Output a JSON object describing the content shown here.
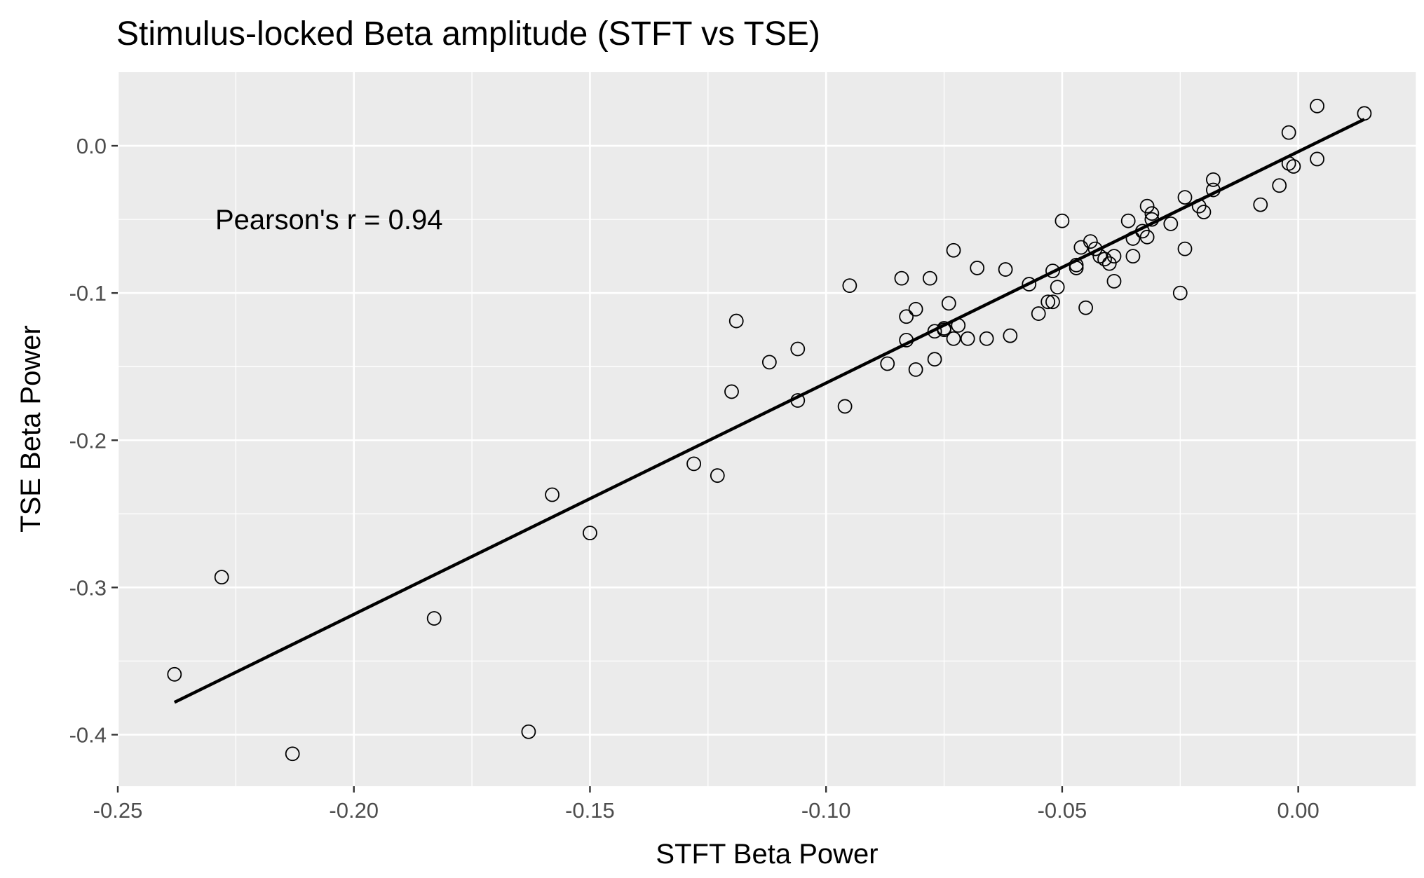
{
  "chart_data": {
    "type": "scatter",
    "title": "Stimulus-locked Beta amplitude (STFT vs TSE)",
    "xlabel": "STFT Beta Power",
    "ylabel": "TSE Beta Power",
    "xlim": [
      -0.25,
      0.025
    ],
    "ylim": [
      -0.435,
      0.05
    ],
    "x_ticks": [
      -0.25,
      -0.2,
      -0.15,
      -0.1,
      -0.05,
      0.0
    ],
    "x_tick_labels": [
      "-0.25",
      "-0.20",
      "-0.15",
      "-0.10",
      "-0.05",
      "0.00"
    ],
    "y_ticks": [
      0.0,
      -0.1,
      -0.2,
      -0.3,
      -0.4
    ],
    "y_tick_labels": [
      "0.0",
      "-0.1",
      "-0.2",
      "-0.3",
      "-0.4"
    ],
    "grid": true,
    "annotation": "Pearson's r =  0.94",
    "colors": {
      "panel_background": "#ebebeb",
      "grid_major": "#ffffff",
      "points": "#000000",
      "fit_line": "#000000",
      "tick_labels": "#4d4d4d"
    },
    "fit_line": {
      "x": [
        -0.238,
        0.014
      ],
      "y": [
        -0.378,
        0.018
      ]
    },
    "points": [
      {
        "x": -0.238,
        "y": -0.359
      },
      {
        "x": -0.228,
        "y": -0.293
      },
      {
        "x": -0.213,
        "y": -0.413
      },
      {
        "x": -0.183,
        "y": -0.321
      },
      {
        "x": -0.163,
        "y": -0.398
      },
      {
        "x": -0.158,
        "y": -0.237
      },
      {
        "x": -0.15,
        "y": -0.263
      },
      {
        "x": -0.128,
        "y": -0.216
      },
      {
        "x": -0.123,
        "y": -0.224
      },
      {
        "x": -0.119,
        "y": -0.119
      },
      {
        "x": -0.12,
        "y": -0.167
      },
      {
        "x": -0.112,
        "y": -0.147
      },
      {
        "x": -0.106,
        "y": -0.138
      },
      {
        "x": -0.106,
        "y": -0.173
      },
      {
        "x": -0.096,
        "y": -0.177
      },
      {
        "x": -0.095,
        "y": -0.095
      },
      {
        "x": -0.087,
        "y": -0.148
      },
      {
        "x": -0.084,
        "y": -0.09
      },
      {
        "x": -0.083,
        "y": -0.116
      },
      {
        "x": -0.083,
        "y": -0.132
      },
      {
        "x": -0.081,
        "y": -0.111
      },
      {
        "x": -0.081,
        "y": -0.152
      },
      {
        "x": -0.078,
        "y": -0.09
      },
      {
        "x": -0.077,
        "y": -0.126
      },
      {
        "x": -0.077,
        "y": -0.145
      },
      {
        "x": -0.075,
        "y": -0.124
      },
      {
        "x": -0.075,
        "y": -0.125
      },
      {
        "x": -0.074,
        "y": -0.107
      },
      {
        "x": -0.073,
        "y": -0.071
      },
      {
        "x": -0.072,
        "y": -0.122
      },
      {
        "x": -0.073,
        "y": -0.131
      },
      {
        "x": -0.07,
        "y": -0.131
      },
      {
        "x": -0.068,
        "y": -0.083
      },
      {
        "x": -0.066,
        "y": -0.131
      },
      {
        "x": -0.062,
        "y": -0.084
      },
      {
        "x": -0.061,
        "y": -0.129
      },
      {
        "x": -0.057,
        "y": -0.094
      },
      {
        "x": -0.055,
        "y": -0.114
      },
      {
        "x": -0.053,
        "y": -0.106
      },
      {
        "x": -0.052,
        "y": -0.085
      },
      {
        "x": -0.052,
        "y": -0.106
      },
      {
        "x": -0.051,
        "y": -0.096
      },
      {
        "x": -0.05,
        "y": -0.051
      },
      {
        "x": -0.047,
        "y": -0.083
      },
      {
        "x": -0.047,
        "y": -0.081
      },
      {
        "x": -0.046,
        "y": -0.069
      },
      {
        "x": -0.045,
        "y": -0.11
      },
      {
        "x": -0.044,
        "y": -0.065
      },
      {
        "x": -0.043,
        "y": -0.07
      },
      {
        "x": -0.042,
        "y": -0.075
      },
      {
        "x": -0.041,
        "y": -0.077
      },
      {
        "x": -0.04,
        "y": -0.08
      },
      {
        "x": -0.039,
        "y": -0.075
      },
      {
        "x": -0.039,
        "y": -0.092
      },
      {
        "x": -0.036,
        "y": -0.051
      },
      {
        "x": -0.035,
        "y": -0.063
      },
      {
        "x": -0.035,
        "y": -0.075
      },
      {
        "x": -0.033,
        "y": -0.058
      },
      {
        "x": -0.032,
        "y": -0.062
      },
      {
        "x": -0.032,
        "y": -0.041
      },
      {
        "x": -0.031,
        "y": -0.05
      },
      {
        "x": -0.031,
        "y": -0.046
      },
      {
        "x": -0.027,
        "y": -0.053
      },
      {
        "x": -0.025,
        "y": -0.1
      },
      {
        "x": -0.024,
        "y": -0.035
      },
      {
        "x": -0.024,
        "y": -0.07
      },
      {
        "x": -0.021,
        "y": -0.041
      },
      {
        "x": -0.02,
        "y": -0.045
      },
      {
        "x": -0.018,
        "y": -0.023
      },
      {
        "x": -0.018,
        "y": -0.03
      },
      {
        "x": -0.008,
        "y": -0.04
      },
      {
        "x": -0.004,
        "y": -0.027
      },
      {
        "x": -0.002,
        "y": 0.009
      },
      {
        "x": -0.002,
        "y": -0.012
      },
      {
        "x": -0.001,
        "y": -0.014
      },
      {
        "x": 0.004,
        "y": 0.027
      },
      {
        "x": 0.004,
        "y": -0.009
      },
      {
        "x": 0.014,
        "y": 0.022
      }
    ]
  }
}
